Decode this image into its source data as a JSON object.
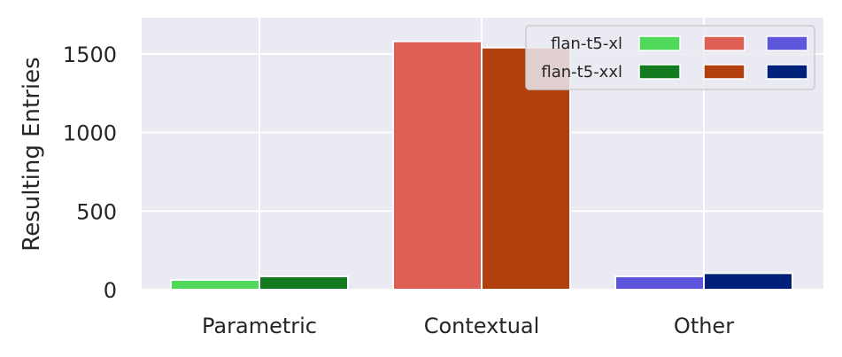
{
  "chart_data": {
    "type": "bar",
    "categories": [
      "Parametric",
      "Contextual",
      "Other"
    ],
    "series": [
      {
        "name": "flan-t5-xl",
        "values": [
          62,
          1580,
          85
        ],
        "colors": [
          "#4fd85a",
          "#de5f55",
          "#5d55db"
        ]
      },
      {
        "name": "flan-t5-xxl",
        "values": [
          85,
          1540,
          105
        ],
        "colors": [
          "#147a1f",
          "#b0400d",
          "#00207a"
        ]
      }
    ],
    "title": "",
    "xlabel": "",
    "ylabel": "Resulting Entries",
    "ylim": [
      0,
      1730
    ],
    "yticks": [
      0,
      500,
      1000,
      1500
    ],
    "grid": true,
    "legend_position": "top-right",
    "background": "#eaeaf2",
    "gridline_color": "#ffffff"
  }
}
